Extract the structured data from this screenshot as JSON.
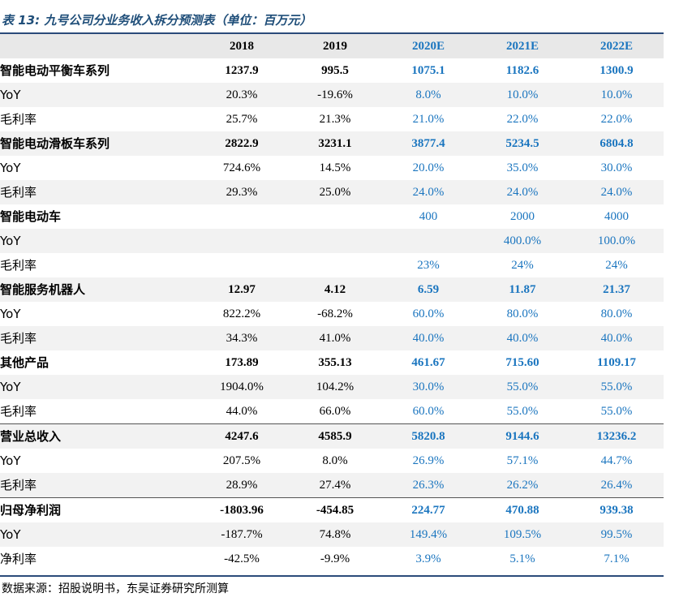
{
  "title": "表 13: 九号公司分业务收入拆分预测表（单位：百万元）",
  "header": {
    "label": "",
    "years": [
      "2018",
      "2019",
      "2020E",
      "2021E",
      "2022E"
    ]
  },
  "rows": [
    {
      "label": "智能电动平衡车系列",
      "values": [
        "1237.9",
        "995.5",
        "1075.1",
        "1182.6",
        "1300.9"
      ]
    },
    {
      "label": "YoY",
      "values": [
        "20.3%",
        "-19.6%",
        "8.0%",
        "10.0%",
        "10.0%"
      ]
    },
    {
      "label": "毛利率",
      "values": [
        "25.7%",
        "21.3%",
        "21.0%",
        "22.0%",
        "22.0%"
      ]
    },
    {
      "label": "智能电动滑板车系列",
      "values": [
        "2822.9",
        "3231.1",
        "3877.4",
        "5234.5",
        "6804.8"
      ]
    },
    {
      "label": "YoY",
      "values": [
        "724.6%",
        "14.5%",
        "20.0%",
        "35.0%",
        "30.0%"
      ]
    },
    {
      "label": "毛利率",
      "values": [
        "29.3%",
        "25.0%",
        "24.0%",
        "24.0%",
        "24.0%"
      ]
    },
    {
      "label": "智能电动车",
      "values": [
        "",
        "",
        "400",
        "2000",
        "4000"
      ]
    },
    {
      "label": "YoY",
      "values": [
        "",
        "",
        "",
        "400.0%",
        "100.0%"
      ]
    },
    {
      "label": "毛利率",
      "values": [
        "",
        "",
        "23%",
        "24%",
        "24%"
      ]
    },
    {
      "label": "智能服务机器人",
      "values": [
        "12.97",
        "4.12",
        "6.59",
        "11.87",
        "21.37"
      ]
    },
    {
      "label": "YoY",
      "values": [
        "822.2%",
        "-68.2%",
        "60.0%",
        "80.0%",
        "80.0%"
      ]
    },
    {
      "label": "毛利率",
      "values": [
        "34.3%",
        "41.0%",
        "40.0%",
        "40.0%",
        "40.0%"
      ]
    },
    {
      "label": "其他产品",
      "values": [
        "173.89",
        "355.13",
        "461.67",
        "715.60",
        "1109.17"
      ]
    },
    {
      "label": "YoY",
      "values": [
        "1904.0%",
        "104.2%",
        "30.0%",
        "55.0%",
        "55.0%"
      ]
    },
    {
      "label": "毛利率",
      "values": [
        "44.0%",
        "66.0%",
        "60.0%",
        "55.0%",
        "55.0%"
      ]
    },
    {
      "label": "营业总收入",
      "values": [
        "4247.6",
        "4585.9",
        "5820.8",
        "9144.6",
        "13236.2"
      ]
    },
    {
      "label": "YoY",
      "values": [
        "207.5%",
        "8.0%",
        "26.9%",
        "57.1%",
        "44.7%"
      ]
    },
    {
      "label": "毛利率",
      "values": [
        "28.9%",
        "27.4%",
        "26.3%",
        "26.2%",
        "26.4%"
      ]
    },
    {
      "label": "归母净利润",
      "values": [
        "-1803.96",
        "-454.85",
        "224.77",
        "470.88",
        "939.38"
      ]
    },
    {
      "label": "YoY",
      "values": [
        "-187.7%",
        "74.8%",
        "149.4%",
        "109.5%",
        "99.5%"
      ]
    },
    {
      "label": "净利率",
      "values": [
        "-42.5%",
        "-9.9%",
        "3.9%",
        "5.1%",
        "7.1%"
      ]
    }
  ],
  "source": "数据来源：招股说明书，东吴证券研究所测算",
  "colors": {
    "estimate_text": "#1a75bf",
    "title_text": "#1f4e79",
    "header_bg": "#e8e8e8",
    "shade_bg": "#f2f2f2",
    "rule": "#2b4b7a"
  }
}
